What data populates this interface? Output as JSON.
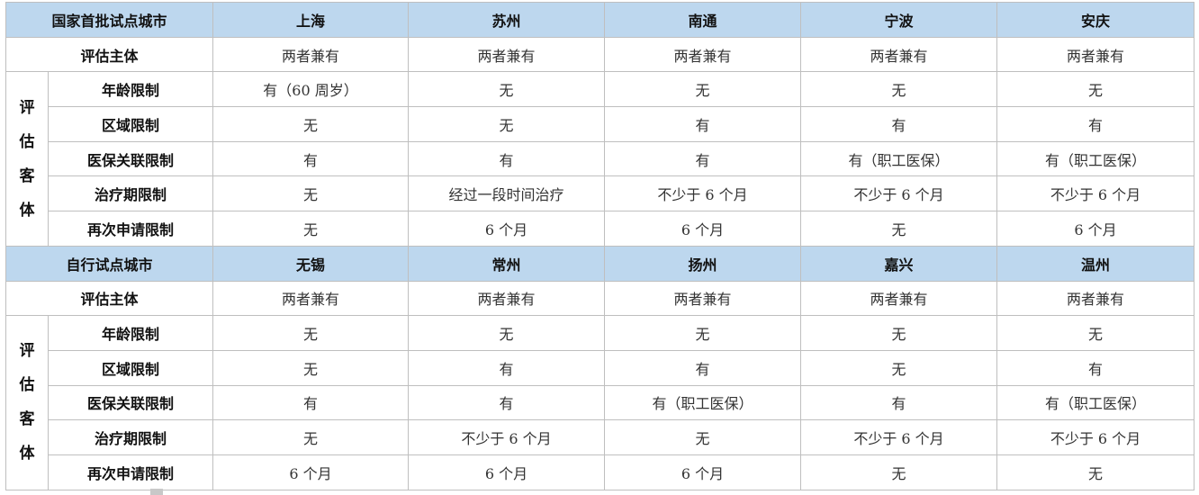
{
  "sections": [
    {
      "group_label": "国家首批试点城市",
      "cities": [
        "上海",
        "苏州",
        "南通",
        "宁波",
        "安庆"
      ],
      "subject_label": "评估主体",
      "subject_values": [
        "两者兼有",
        "两者兼有",
        "两者兼有",
        "两者兼有",
        "两者兼有"
      ],
      "object_label": "评估客体",
      "rows": [
        {
          "label": "年龄限制",
          "values": [
            "有（60 周岁）",
            "无",
            "无",
            "无",
            "无"
          ]
        },
        {
          "label": "区域限制",
          "values": [
            "无",
            "无",
            "有",
            "有",
            "有"
          ]
        },
        {
          "label": "医保关联限制",
          "values": [
            "有",
            "有",
            "有",
            "有（职工医保）",
            "有（职工医保）"
          ]
        },
        {
          "label": "治疗期限制",
          "values": [
            "无",
            "经过一段时间治疗",
            "不少于 6 个月",
            "不少于 6 个月",
            "不少于 6 个月"
          ]
        },
        {
          "label": "再次申请限制",
          "values": [
            "无",
            "6 个月",
            "6 个月",
            "无",
            "6 个月"
          ]
        }
      ]
    },
    {
      "group_label": "自行试点城市",
      "cities": [
        "无锡",
        "常州",
        "扬州",
        "嘉兴",
        "温州"
      ],
      "subject_label": "评估主体",
      "subject_values": [
        "两者兼有",
        "两者兼有",
        "两者兼有",
        "两者兼有",
        "两者兼有"
      ],
      "object_label": "评估客体",
      "rows": [
        {
          "label": "年龄限制",
          "values": [
            "无",
            "无",
            "无",
            "无",
            "无"
          ]
        },
        {
          "label": "区域限制",
          "values": [
            "无",
            "有",
            "有",
            "无",
            "有"
          ]
        },
        {
          "label": "医保关联限制",
          "values": [
            "有",
            "有",
            "有（职工医保）",
            "有",
            "有（职工医保）"
          ]
        },
        {
          "label": "治疗期限制",
          "values": [
            "无",
            "不少于 6 个月",
            "无",
            "不少于 6 个月",
            "不少于 6 个月"
          ]
        },
        {
          "label": "再次申请限制",
          "values": [
            "6 个月",
            "6 个月",
            "6 个月",
            "无",
            "无"
          ]
        }
      ]
    }
  ],
  "colors": {
    "header_bg": "#bdd7ee",
    "border": "#bfbfbf"
  }
}
